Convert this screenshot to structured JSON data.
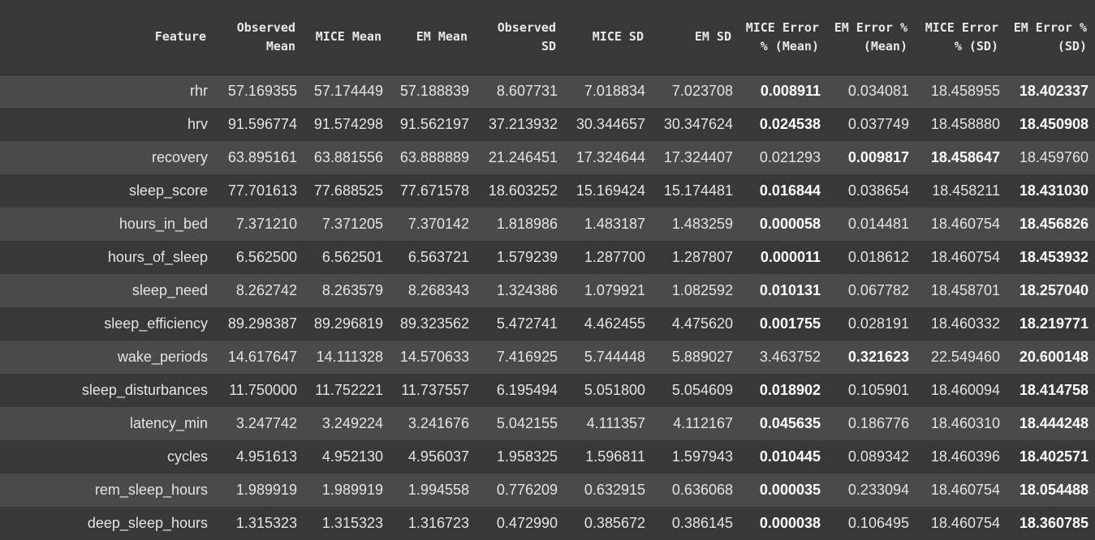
{
  "table": {
    "columns": [
      "Feature",
      "Observed Mean",
      "MICE Mean",
      "EM Mean",
      "Observed SD",
      "MICE SD",
      "EM SD",
      "MICE Error % (Mean)",
      "EM Error % (Mean)",
      "MICE Error % (SD)",
      "EM Error % (SD)"
    ],
    "rows": [
      {
        "cells": [
          "rhr",
          "57.169355",
          "57.174449",
          "57.188839",
          "8.607731",
          "7.018834",
          "7.023708",
          "0.008911",
          "0.034081",
          "18.458955",
          "18.402337"
        ],
        "bold": [
          7,
          10
        ]
      },
      {
        "cells": [
          "hrv",
          "91.596774",
          "91.574298",
          "91.562197",
          "37.213932",
          "30.344657",
          "30.347624",
          "0.024538",
          "0.037749",
          "18.458880",
          "18.450908"
        ],
        "bold": [
          7,
          10
        ]
      },
      {
        "cells": [
          "recovery",
          "63.895161",
          "63.881556",
          "63.888889",
          "21.246451",
          "17.324644",
          "17.324407",
          "0.021293",
          "0.009817",
          "18.458647",
          "18.459760"
        ],
        "bold": [
          8,
          9
        ]
      },
      {
        "cells": [
          "sleep_score",
          "77.701613",
          "77.688525",
          "77.671578",
          "18.603252",
          "15.169424",
          "15.174481",
          "0.016844",
          "0.038654",
          "18.458211",
          "18.431030"
        ],
        "bold": [
          7,
          10
        ]
      },
      {
        "cells": [
          "hours_in_bed",
          "7.371210",
          "7.371205",
          "7.370142",
          "1.818986",
          "1.483187",
          "1.483259",
          "0.000058",
          "0.014481",
          "18.460754",
          "18.456826"
        ],
        "bold": [
          7,
          10
        ]
      },
      {
        "cells": [
          "hours_of_sleep",
          "6.562500",
          "6.562501",
          "6.563721",
          "1.579239",
          "1.287700",
          "1.287807",
          "0.000011",
          "0.018612",
          "18.460754",
          "18.453932"
        ],
        "bold": [
          7,
          10
        ]
      },
      {
        "cells": [
          "sleep_need",
          "8.262742",
          "8.263579",
          "8.268343",
          "1.324386",
          "1.079921",
          "1.082592",
          "0.010131",
          "0.067782",
          "18.458701",
          "18.257040"
        ],
        "bold": [
          7,
          10
        ]
      },
      {
        "cells": [
          "sleep_efficiency",
          "89.298387",
          "89.296819",
          "89.323562",
          "5.472741",
          "4.462455",
          "4.475620",
          "0.001755",
          "0.028191",
          "18.460332",
          "18.219771"
        ],
        "bold": [
          7,
          10
        ]
      },
      {
        "cells": [
          "wake_periods",
          "14.617647",
          "14.111328",
          "14.570633",
          "7.416925",
          "5.744448",
          "5.889027",
          "3.463752",
          "0.321623",
          "22.549460",
          "20.600148"
        ],
        "bold": [
          8,
          10
        ]
      },
      {
        "cells": [
          "sleep_disturbances",
          "11.750000",
          "11.752221",
          "11.737557",
          "6.195494",
          "5.051800",
          "5.054609",
          "0.018902",
          "0.105901",
          "18.460094",
          "18.414758"
        ],
        "bold": [
          7,
          10
        ]
      },
      {
        "cells": [
          "latency_min",
          "3.247742",
          "3.249224",
          "3.241676",
          "5.042155",
          "4.111357",
          "4.112167",
          "0.045635",
          "0.186776",
          "18.460310",
          "18.444248"
        ],
        "bold": [
          7,
          10
        ]
      },
      {
        "cells": [
          "cycles",
          "4.951613",
          "4.952130",
          "4.956037",
          "1.958325",
          "1.596811",
          "1.597943",
          "0.010445",
          "0.089342",
          "18.460396",
          "18.402571"
        ],
        "bold": [
          7,
          10
        ]
      },
      {
        "cells": [
          "rem_sleep_hours",
          "1.989919",
          "1.989919",
          "1.994558",
          "0.776209",
          "0.632915",
          "0.636068",
          "0.000035",
          "0.233094",
          "18.460754",
          "18.054488"
        ],
        "bold": [
          7,
          10
        ]
      },
      {
        "cells": [
          "deep_sleep_hours",
          "1.315323",
          "1.315323",
          "1.316723",
          "0.472990",
          "0.385672",
          "0.386145",
          "0.000038",
          "0.106495",
          "18.460754",
          "18.360785"
        ],
        "bold": [
          7,
          10
        ]
      }
    ]
  }
}
